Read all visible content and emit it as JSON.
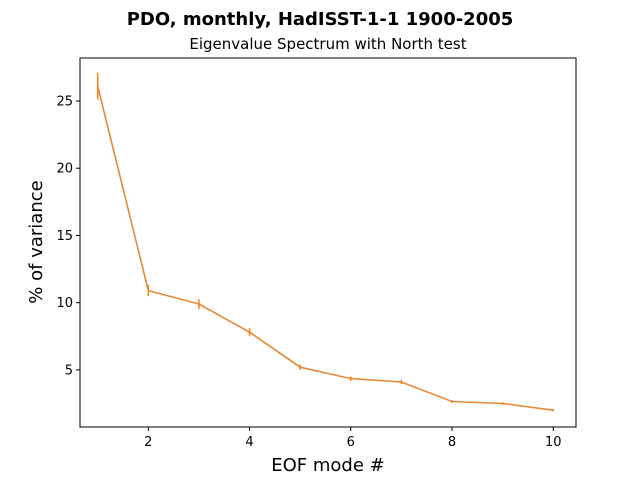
{
  "chart_data": {
    "type": "line",
    "title": "PDO, monthly, HadISST-1-1 1900-2005",
    "subtitle": "Eigenvalue Spectrum with North test",
    "xlabel": "EOF mode #",
    "ylabel": "% of variance",
    "xlim": [
      0.65,
      10.45
    ],
    "ylim": [
      0.75,
      28.2
    ],
    "xticks": [
      2,
      4,
      6,
      8,
      10
    ],
    "yticks": [
      5,
      10,
      15,
      20,
      25
    ],
    "grid": false,
    "series": [
      {
        "x": [
          1,
          2,
          3,
          4,
          5,
          6,
          7,
          8,
          9,
          10
        ],
        "values": [
          26.1,
          10.9,
          9.9,
          7.8,
          5.2,
          4.35,
          4.1,
          2.65,
          2.5,
          2.0
        ],
        "errors": [
          1.0,
          0.42,
          0.38,
          0.3,
          0.2,
          0.17,
          0.16,
          0.1,
          0.1,
          0.08
        ],
        "color": "#ff7f0e",
        "line_color": "#e58a3a"
      }
    ]
  }
}
